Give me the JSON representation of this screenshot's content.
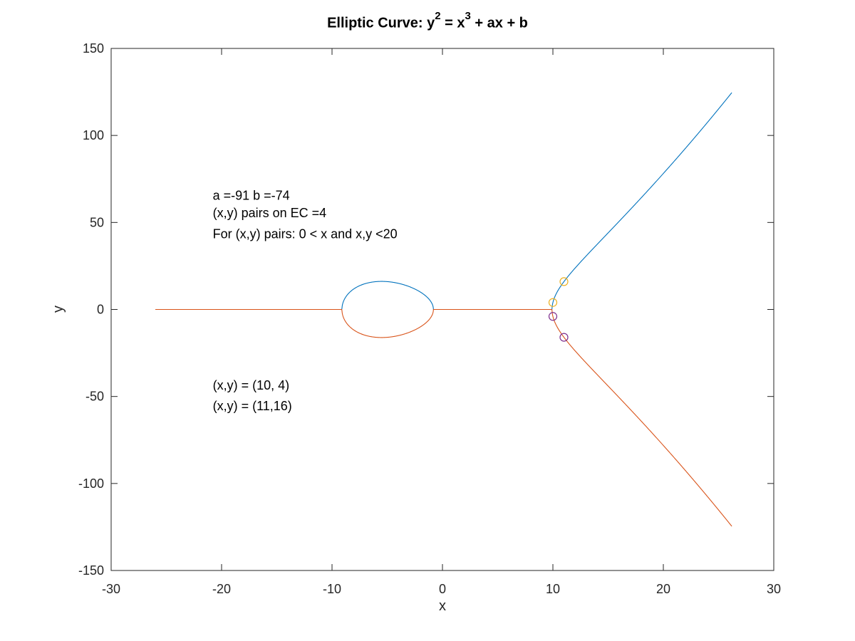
{
  "chart_data": {
    "type": "line",
    "title": {
      "prefix": "Elliptic Curve:  y",
      "exp1": "2",
      "mid": " = x",
      "exp2": "3",
      "suffix": " + ax + b"
    },
    "xlabel": "x",
    "ylabel": "y",
    "xlim": [
      -30,
      30
    ],
    "ylim": [
      -150,
      150
    ],
    "xticks": [
      -30,
      -20,
      -10,
      0,
      10,
      20,
      30
    ],
    "yticks": [
      -150,
      -100,
      -50,
      0,
      50,
      100,
      150
    ],
    "grid": false,
    "box": true,
    "params": {
      "a": -91,
      "b": -74
    },
    "curve_x_range": [
      -26,
      26.2
    ],
    "series": [
      {
        "branch": "upper",
        "color": "#0072BD"
      },
      {
        "branch": "lower",
        "color": "#D95319"
      }
    ],
    "points": [
      {
        "x": 10,
        "y": 4,
        "color": "#EDB120"
      },
      {
        "x": 11,
        "y": 16,
        "color": "#EDB120"
      },
      {
        "x": 10,
        "y": -4,
        "color": "#7E2F8E"
      },
      {
        "x": 11,
        "y": -16,
        "color": "#7E2F8E"
      }
    ],
    "annotations": [
      {
        "text": "a =-91 b =-74",
        "x": -20.8,
        "y": 63
      },
      {
        "text": "(x,y) pairs on EC =4",
        "x": -20.8,
        "y": 53
      },
      {
        "text": "For (x,y) pairs: 0 < x and x,y <20",
        "x": -20.8,
        "y": 41
      },
      {
        "text": "(x,y) = (10, 4)",
        "x": -20.8,
        "y": -46
      },
      {
        "text": "(x,y) = (11,16)",
        "x": -20.8,
        "y": -58
      }
    ]
  }
}
